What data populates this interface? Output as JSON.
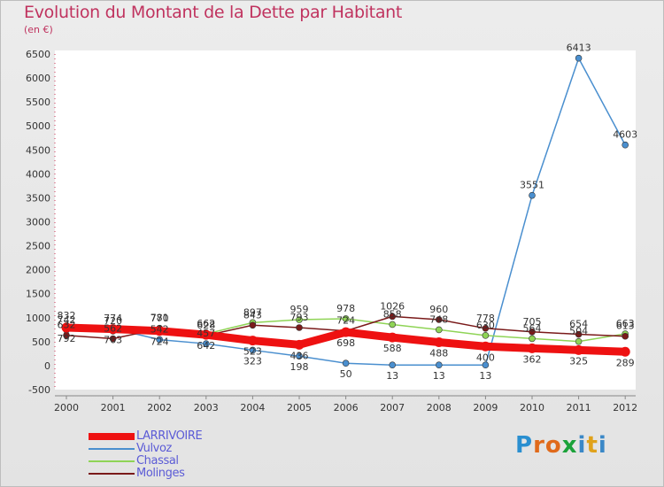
{
  "header": {
    "title": "Evolution du Montant de la Dette par Habitant",
    "unit": "(en €)"
  },
  "logo": {
    "text": "Proxiti",
    "letter_colors": [
      "#2a8fd0",
      "#e06a1b",
      "#e06a1b",
      "#1ba23a",
      "#3b88c7",
      "#e0a21b",
      "#3b88c7"
    ]
  },
  "chart_data": {
    "type": "line",
    "title": "Evolution du Montant de la Dette par Habitant",
    "ylabel": "(en €)",
    "xlabel": "",
    "x": [
      "2000",
      "2001",
      "2002",
      "2003",
      "2004",
      "2005",
      "2006",
      "2007",
      "2008",
      "2009",
      "2010",
      "2011",
      "2012"
    ],
    "ylim": [
      -500,
      6500
    ],
    "yticks": [
      "-500",
      "0",
      "500",
      "1000",
      "1500",
      "2000",
      "2500",
      "3000",
      "3500",
      "4000",
      "4500",
      "5000",
      "5500",
      "6000",
      "6500"
    ],
    "grid": false,
    "legend_position": "bottom-left",
    "series": [
      {
        "name": "LARRIVOIRE",
        "color": "#ee1111",
        "values": [
          792,
          763,
          724,
          642,
          523,
          436,
          698,
          588,
          488,
          400,
          362,
          325,
          289
        ],
        "labels": [
          "792",
          "763",
          "724",
          "642",
          "523",
          "436",
          "698",
          "588",
          "488",
          "400",
          "362",
          "325",
          "289"
        ]
      },
      {
        "name": "Vulvoz",
        "color": "#4a8fcf",
        "values": [
          742,
          774,
          542,
          457,
          323,
          198,
          50,
          13,
          13,
          13,
          3551,
          6413,
          4603
        ],
        "labels": [
          "742",
          "774",
          "542",
          "457",
          "323",
          "198",
          "50",
          "13",
          "13",
          "13",
          "3551",
          "6413",
          "4603"
        ]
      },
      {
        "name": "Chassal",
        "color": "#8fd456",
        "values": [
          832,
          720,
          781,
          662,
          897,
          959,
          978,
          858,
          748,
          630,
          564,
          504,
          663
        ],
        "labels": [
          "832",
          "720",
          "781",
          "662",
          "897",
          "959",
          "978",
          "858",
          "748",
          "630",
          "564",
          "504",
          "663"
        ]
      },
      {
        "name": "Molinges",
        "color": "#7a1a1a",
        "values": [
          632,
          562,
          770,
          628,
          843,
          793,
          724,
          1026,
          960,
          778,
          705,
          654,
          613
        ],
        "labels": [
          "632",
          "562",
          "770",
          "628",
          "843",
          "793",
          "724",
          "1026",
          "960",
          "778",
          "705",
          "654",
          "613"
        ]
      }
    ]
  }
}
